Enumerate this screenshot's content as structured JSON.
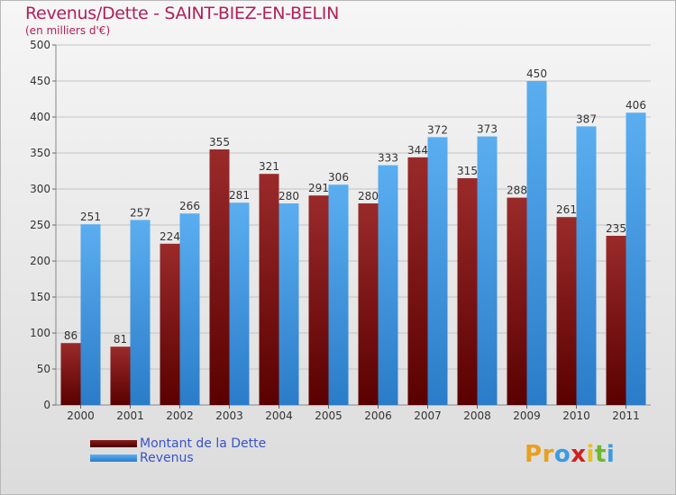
{
  "header": {
    "title": "Revenus/Dette - SAINT-BIEZ-EN-BELIN",
    "subtitle": "(en milliers d'€)"
  },
  "legend": {
    "items": [
      {
        "label": "Montant de la Dette",
        "color": "#6b0000"
      },
      {
        "label": "Revenus",
        "color": "#4aa0e8"
      }
    ]
  },
  "logo": {
    "text": "Proxiti",
    "letter_colors": [
      "#e8a020",
      "#e8a020",
      "#3a9be0",
      "#d02020",
      "#e8c020",
      "#6cb82c",
      "#3a9be0"
    ]
  },
  "colors": {
    "dette": "#6b0000",
    "revenus": "#4aa0e8",
    "title": "#b0205a",
    "legend_text": "#3a52c8"
  },
  "chart_data": {
    "type": "bar",
    "categories": [
      "2000",
      "2001",
      "2002",
      "2003",
      "2004",
      "2005",
      "2006",
      "2007",
      "2008",
      "2009",
      "2010",
      "2011"
    ],
    "series": [
      {
        "name": "Montant de la Dette",
        "values": [
          86,
          81,
          224,
          355,
          321,
          291,
          280,
          344,
          315,
          288,
          261,
          235
        ]
      },
      {
        "name": "Revenus",
        "values": [
          251,
          257,
          266,
          281,
          280,
          306,
          333,
          372,
          373,
          450,
          387,
          406
        ]
      }
    ],
    "ylim": [
      0,
      500
    ],
    "yticks": [
      0,
      50,
      100,
      150,
      200,
      250,
      300,
      350,
      400,
      450,
      500
    ],
    "grid": true,
    "data_labels": true,
    "legend_position": "bottom-left"
  }
}
